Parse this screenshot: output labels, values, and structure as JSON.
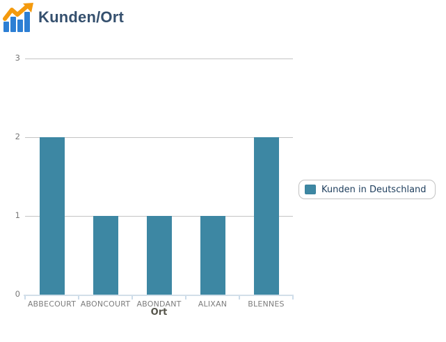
{
  "header": {
    "title": "Kunden/Ort"
  },
  "icon": {
    "name": "growth-chart-icon",
    "bar_color": "#2d7fd4",
    "arrow_color": "#f49a0d"
  },
  "chart_data": {
    "type": "bar",
    "title": "Kunden/Ort",
    "categories": [
      "ABBECOURT",
      "ABONCOURT",
      "ABONDANT",
      "ALIXAN",
      "BLENNES"
    ],
    "series": [
      {
        "name": "Kunden in Deutschland",
        "values": [
          2,
          1,
          1,
          1,
          2
        ]
      }
    ],
    "xlabel": "Ort",
    "ylabel": "",
    "ylim": [
      0,
      3
    ],
    "yticks": [
      0,
      1,
      2,
      3
    ],
    "grid": true,
    "legend_position": "right",
    "bar_color": "#3d87a3"
  },
  "colors": {
    "title_text": "#35506e",
    "bar": "#3d87a3",
    "gridline": "#c3c3c3",
    "axis_line": "#d2dfe9",
    "tick_label": "#787878",
    "category_label": "#7d7d7d",
    "xaxis_title": "#55544a",
    "legend_text": "#1d3d5c",
    "legend_border": "#c2c2c2"
  }
}
